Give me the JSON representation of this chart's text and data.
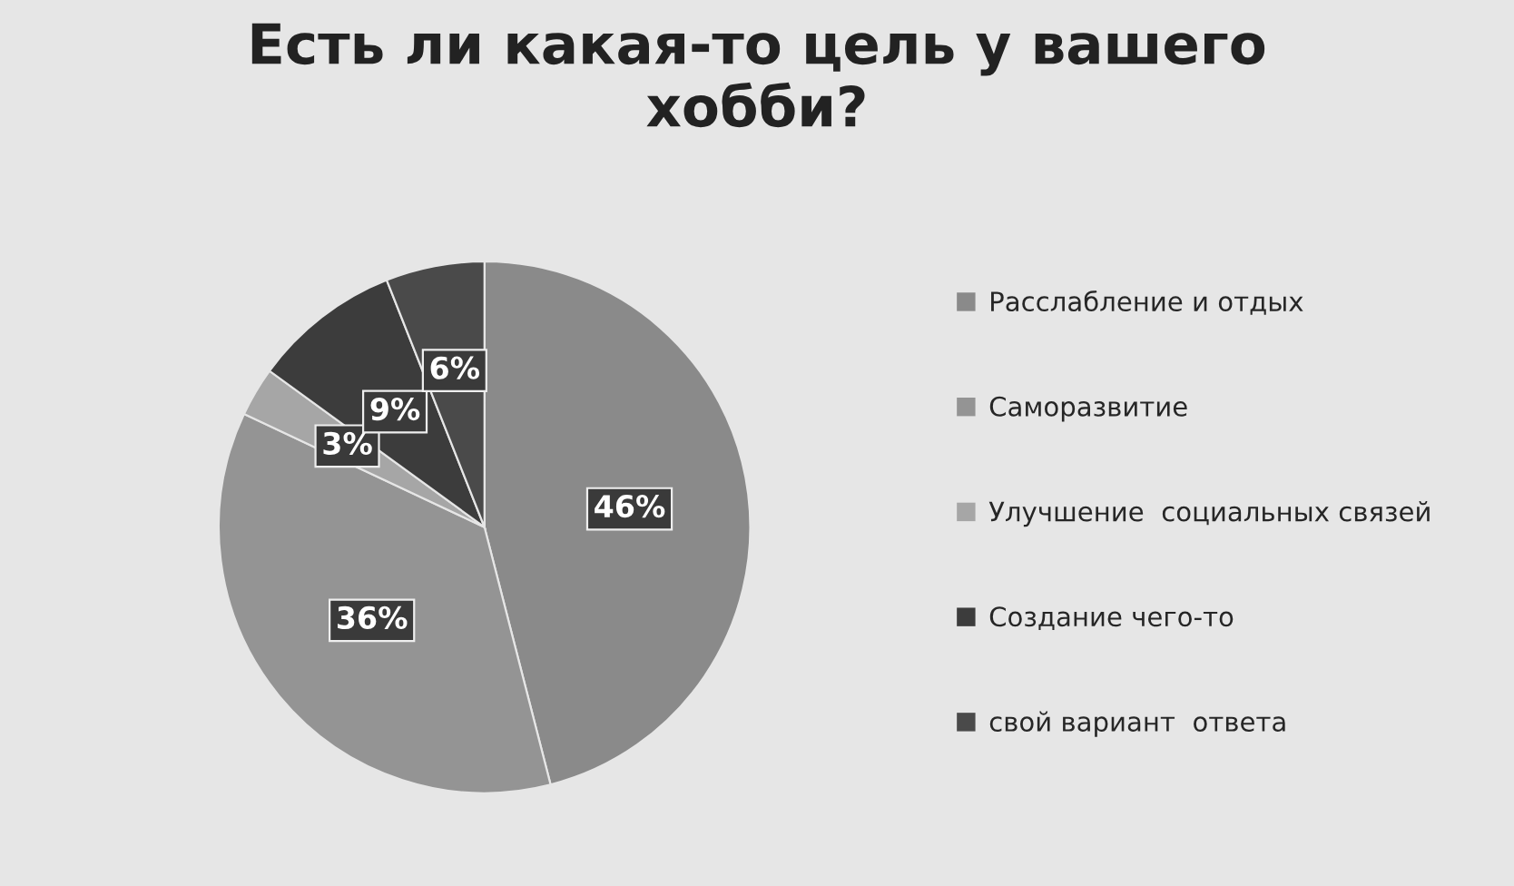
{
  "chart_data": {
    "type": "pie",
    "title": "Есть ли какая-то цель у вашего\nхобби?",
    "categories": [
      "Расслабление и отдых",
      "Саморазвитие",
      "Улучшение  социальных связей",
      "Создание чего-то",
      "свой вариант  ответа"
    ],
    "values": [
      46,
      36,
      3,
      9,
      6
    ],
    "colors": [
      "#8a8a8a",
      "#949494",
      "#a6a6a6",
      "#3c3c3c",
      "#4a4a4a"
    ],
    "value_labels": [
      "46%",
      "36%",
      "3%",
      "9%",
      "6%"
    ],
    "legend": "right"
  }
}
